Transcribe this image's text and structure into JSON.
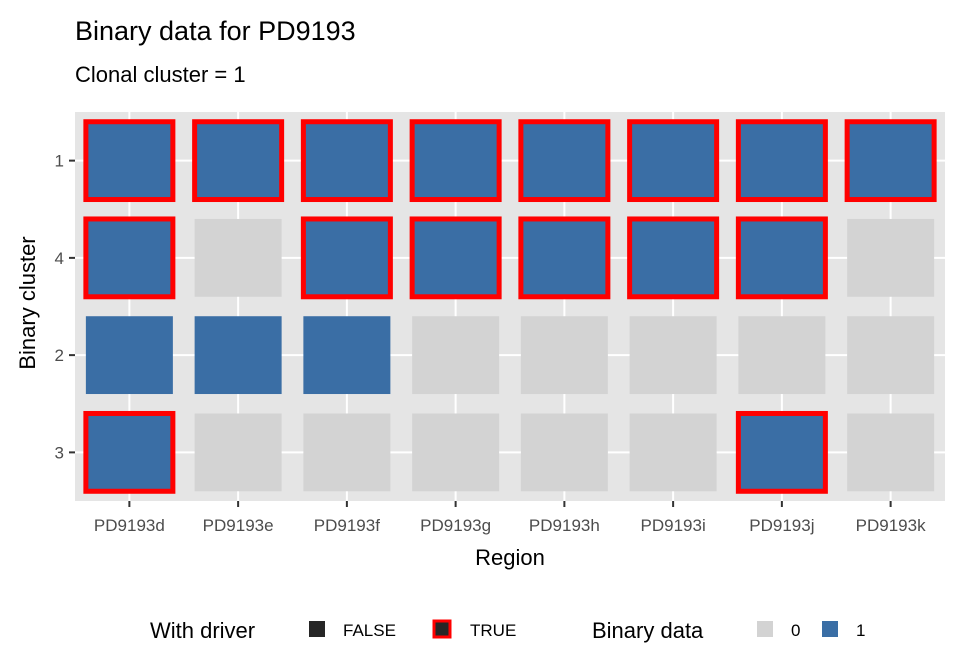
{
  "chart_data": {
    "type": "heatmap",
    "title": "Binary data for PD9193",
    "subtitle": "Clonal cluster =  1",
    "xlabel": "Region",
    "ylabel": "Binary cluster",
    "x_categories": [
      "PD9193d",
      "PD9193e",
      "PD9193f",
      "PD9193g",
      "PD9193h",
      "PD9193i",
      "PD9193j",
      "PD9193k"
    ],
    "y_categories_top_to_bottom": [
      "1",
      "4",
      "2",
      "3"
    ],
    "grid": true,
    "values": {
      "1": [
        1,
        1,
        1,
        1,
        1,
        1,
        1,
        1
      ],
      "4": [
        1,
        0,
        1,
        1,
        1,
        1,
        1,
        0
      ],
      "2": [
        1,
        1,
        1,
        0,
        0,
        0,
        0,
        0
      ],
      "3": [
        1,
        0,
        0,
        0,
        0,
        0,
        1,
        0
      ]
    },
    "with_driver": {
      "1": [
        true,
        true,
        true,
        true,
        true,
        true,
        true,
        true
      ],
      "4": [
        true,
        false,
        true,
        true,
        true,
        true,
        true,
        false
      ],
      "2": [
        false,
        false,
        false,
        false,
        false,
        false,
        false,
        false
      ],
      "3": [
        true,
        false,
        false,
        false,
        false,
        false,
        true,
        false
      ]
    },
    "fill_colors": {
      "0": "#d3d3d3",
      "1": "#3a6ea5"
    },
    "driver_outline_color": "#ff0000",
    "panel_background": "#e5e5e5",
    "legend_position": "bottom",
    "legends": [
      {
        "title": "With driver",
        "entries": [
          {
            "label": "FALSE",
            "fill": "#262626",
            "outline": false
          },
          {
            "label": "TRUE",
            "fill": "#262626",
            "outline": true
          }
        ]
      },
      {
        "title": "Binary data",
        "entries": [
          {
            "label": "0",
            "fill": "#d3d3d3",
            "outline": false
          },
          {
            "label": "1",
            "fill": "#3a6ea5",
            "outline": false
          }
        ]
      }
    ]
  }
}
